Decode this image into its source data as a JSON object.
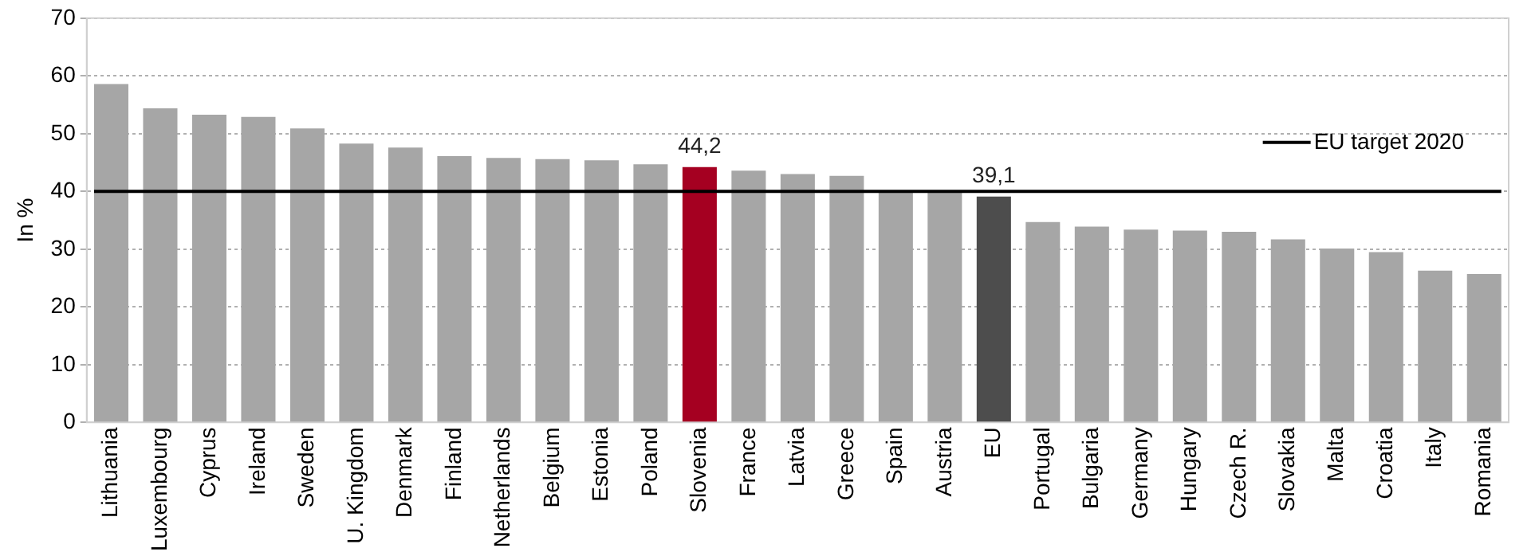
{
  "chart_data": {
    "type": "bar",
    "ylabel": "In %",
    "categories": [
      "Lithuania",
      "Luxembourg",
      "Cyprus",
      "Ireland",
      "Sweden",
      "U. Kingdom",
      "Denmark",
      "Finland",
      "Netherlands",
      "Belgium",
      "Estonia",
      "Poland",
      "Slovenia",
      "France",
      "Latvia",
      "Greece",
      "Spain",
      "Austria",
      "EU",
      "Portugal",
      "Bulgaria",
      "Germany",
      "Hungary",
      "Czech R.",
      "Slovakia",
      "Malta",
      "Croatia",
      "Italy",
      "Romania"
    ],
    "values": [
      58.6,
      54.4,
      53.3,
      52.9,
      50.9,
      48.3,
      47.6,
      46.1,
      45.8,
      45.6,
      45.4,
      44.7,
      44.2,
      43.6,
      43.0,
      42.7,
      40.0,
      40.0,
      39.1,
      34.7,
      33.9,
      33.4,
      33.2,
      33.0,
      31.7,
      30.1,
      29.5,
      26.3,
      25.7
    ],
    "colors": [
      "#a6a6a6",
      "#a6a6a6",
      "#a6a6a6",
      "#a6a6a6",
      "#a6a6a6",
      "#a6a6a6",
      "#a6a6a6",
      "#a6a6a6",
      "#a6a6a6",
      "#a6a6a6",
      "#a6a6a6",
      "#a6a6a6",
      "#a50021",
      "#a6a6a6",
      "#a6a6a6",
      "#a6a6a6",
      "#a6a6a6",
      "#a6a6a6",
      "#4d4d4d",
      "#a6a6a6",
      "#a6a6a6",
      "#a6a6a6",
      "#a6a6a6",
      "#a6a6a6",
      "#a6a6a6",
      "#a6a6a6",
      "#a6a6a6",
      "#a6a6a6",
      "#a6a6a6"
    ],
    "value_labels": [
      null,
      null,
      null,
      null,
      null,
      null,
      null,
      null,
      null,
      null,
      null,
      null,
      "44,2",
      null,
      null,
      null,
      null,
      null,
      "39,1",
      null,
      null,
      null,
      null,
      null,
      null,
      null,
      null,
      null,
      null
    ],
    "ref_lines": [
      {
        "axis": "y",
        "value": 40,
        "label": "EU target 2020",
        "color": "#000000"
      }
    ],
    "legend": "top right",
    "ylim": [
      0,
      70
    ],
    "yticks": [
      0,
      10,
      20,
      30,
      40,
      50,
      60,
      70
    ],
    "grid": "y"
  }
}
